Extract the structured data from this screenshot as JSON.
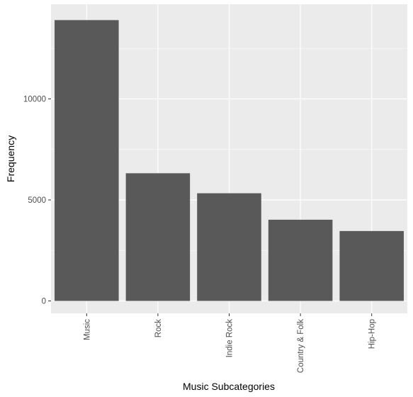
{
  "chart_data": {
    "type": "bar",
    "title": "",
    "xlabel": "Music Subcategories",
    "ylabel": "Frequency",
    "categories": [
      "Music",
      "Rock",
      "Indie Rock",
      "Country & Folk",
      "Hip-Hop"
    ],
    "values": [
      13900,
      6320,
      5330,
      4020,
      3460
    ],
    "ylim": [
      -800,
      14600
    ],
    "yticks": [
      0,
      5000,
      10000
    ],
    "ytick_labels": [
      "0",
      "5000",
      "10000"
    ],
    "grid": true,
    "bar_color": "#595959",
    "panel_color": "#ebebeb",
    "grid_color": "#ffffff"
  }
}
